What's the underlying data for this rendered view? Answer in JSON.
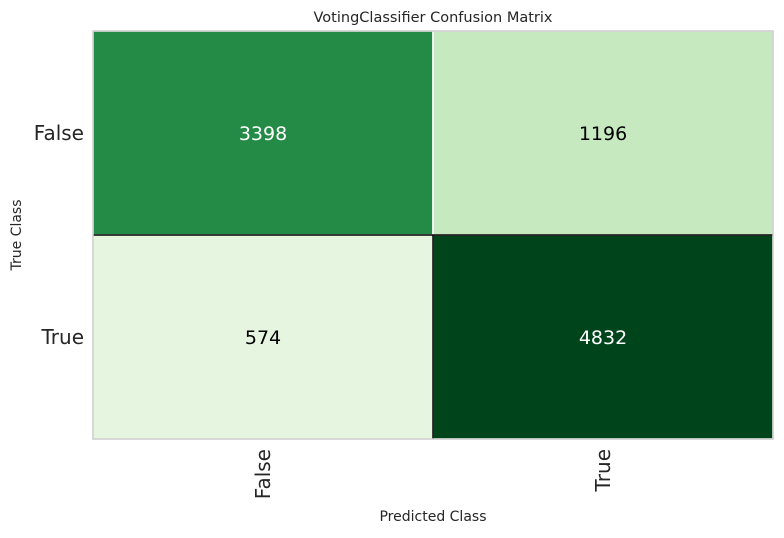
{
  "chart_data": {
    "type": "heatmap",
    "title": "VotingClassifier Confusion Matrix",
    "xlabel": "Predicted Class",
    "ylabel": "True Class",
    "x_categories": [
      "False",
      "True"
    ],
    "y_categories": [
      "False",
      "True"
    ],
    "values": [
      [
        3398,
        1196
      ],
      [
        574,
        4832
      ]
    ],
    "cell_colors": [
      [
        "#238b45",
        "#c7e9c0"
      ],
      [
        "#e5f5e0",
        "#00441b"
      ]
    ],
    "label_colors": [
      [
        "#ffffff",
        "#000000"
      ],
      [
        "#000000",
        "#ffffff"
      ]
    ],
    "colormap": "Greens",
    "grid": false,
    "legend": "none"
  }
}
